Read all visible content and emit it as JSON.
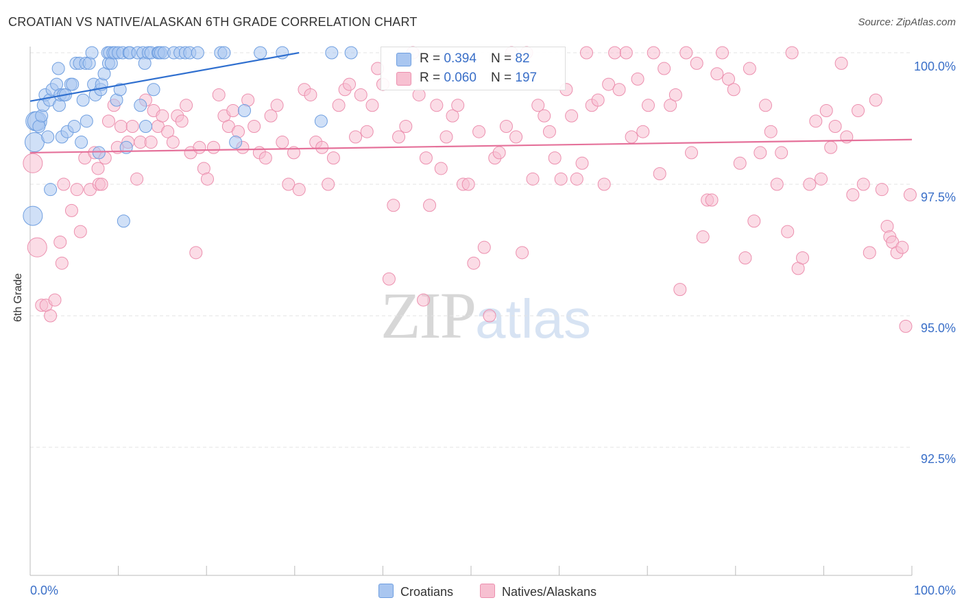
{
  "header": {
    "title": "CROATIAN VS NATIVE/ALASKAN 6TH GRADE CORRELATION CHART",
    "source": "Source: ZipAtlas.com"
  },
  "watermark": {
    "part1": "ZIP",
    "part2": "atlas"
  },
  "legend": {
    "series1": {
      "r_label": "R = ",
      "r_value": "0.394",
      "n_label": "N = ",
      "n_value": "82"
    },
    "series2": {
      "r_label": "R = ",
      "r_value": "0.060",
      "n_label": "N = ",
      "n_value": "197"
    }
  },
  "bottom_legend": {
    "s1": "Croatians",
    "s2": "Natives/Alaskans"
  },
  "colors": {
    "blue_fill": "#a9c6f0",
    "blue_stroke": "#6e9ee0",
    "blue_line": "#2f6fcf",
    "pink_fill": "#f7c0d1",
    "pink_stroke": "#ec8fae",
    "pink_line": "#e5719a",
    "tick_text": "#3a6fc8",
    "grid": "#e3e3e3"
  },
  "chart_data": {
    "type": "scatter",
    "title": "CROATIAN VS NATIVE/ALASKAN 6TH GRADE CORRELATION CHART",
    "xlabel": "",
    "ylabel": "6th Grade",
    "xlim": [
      0,
      100
    ],
    "ylim": [
      90.0,
      100.0
    ],
    "x_tick_labels": [
      "0.0%",
      "100.0%"
    ],
    "y_ticks": [
      100.0,
      97.5,
      95.0,
      92.5
    ],
    "y_tick_labels": [
      "100.0%",
      "97.5%",
      "95.0%",
      "92.5%"
    ],
    "grid": true,
    "legend_position": "top-center",
    "series": [
      {
        "name": "Croatians",
        "color": "#6e9ee0",
        "R": 0.394,
        "N": 82,
        "trend": {
          "x": [
            0,
            30.5
          ],
          "y": [
            99.08,
            100.0
          ]
        },
        "points": [
          [
            0.3,
            96.9
          ],
          [
            0.5,
            98.3
          ],
          [
            0.6,
            98.7
          ],
          [
            0.8,
            98.7
          ],
          [
            1.0,
            98.6
          ],
          [
            1.3,
            98.8
          ],
          [
            1.5,
            99.0
          ],
          [
            1.7,
            99.2
          ],
          [
            2.0,
            98.4
          ],
          [
            2.2,
            99.1
          ],
          [
            2.3,
            97.4
          ],
          [
            2.5,
            99.3
          ],
          [
            3.0,
            99.4
          ],
          [
            3.2,
            99.7
          ],
          [
            3.3,
            99.0
          ],
          [
            3.4,
            99.2
          ],
          [
            3.6,
            98.4
          ],
          [
            3.8,
            99.2
          ],
          [
            4.0,
            99.2
          ],
          [
            4.2,
            98.5
          ],
          [
            4.6,
            99.4
          ],
          [
            4.8,
            99.4
          ],
          [
            5.0,
            98.6
          ],
          [
            5.2,
            99.8
          ],
          [
            5.6,
            99.8
          ],
          [
            5.8,
            98.3
          ],
          [
            6.0,
            99.1
          ],
          [
            6.3,
            99.8
          ],
          [
            6.4,
            98.7
          ],
          [
            6.7,
            99.8
          ],
          [
            7.0,
            100.0
          ],
          [
            7.2,
            99.4
          ],
          [
            7.4,
            99.2
          ],
          [
            7.8,
            98.1
          ],
          [
            8.0,
            99.3
          ],
          [
            8.1,
            99.4
          ],
          [
            8.4,
            99.6
          ],
          [
            8.8,
            100.0
          ],
          [
            8.9,
            99.8
          ],
          [
            9.0,
            100.0
          ],
          [
            9.2,
            99.8
          ],
          [
            9.4,
            100.0
          ],
          [
            9.6,
            100.0
          ],
          [
            9.8,
            99.1
          ],
          [
            10.0,
            100.0
          ],
          [
            10.2,
            99.3
          ],
          [
            10.5,
            100.0
          ],
          [
            10.6,
            96.8
          ],
          [
            10.9,
            98.2
          ],
          [
            11.2,
            100.0
          ],
          [
            11.3,
            100.0
          ],
          [
            12.2,
            100.0
          ],
          [
            12.5,
            99.0
          ],
          [
            12.8,
            100.0
          ],
          [
            13.0,
            99.8
          ],
          [
            13.1,
            98.6
          ],
          [
            13.4,
            100.0
          ],
          [
            13.7,
            100.0
          ],
          [
            14.0,
            99.3
          ],
          [
            14.5,
            100.0
          ],
          [
            14.6,
            100.0
          ],
          [
            14.8,
            100.0
          ],
          [
            15.2,
            100.0
          ],
          [
            16.3,
            100.0
          ],
          [
            17.0,
            100.0
          ],
          [
            17.6,
            100.0
          ],
          [
            18.1,
            100.0
          ],
          [
            19.0,
            100.0
          ],
          [
            21.6,
            100.0
          ],
          [
            22.0,
            100.0
          ],
          [
            23.3,
            98.3
          ],
          [
            24.3,
            98.9
          ],
          [
            26.1,
            100.0
          ],
          [
            28.6,
            100.0
          ],
          [
            33.0,
            98.7
          ],
          [
            34.2,
            100.0
          ],
          [
            36.4,
            100.0
          ]
        ]
      },
      {
        "name": "Natives/Alaskans",
        "color": "#ec8fae",
        "R": 0.06,
        "N": 197,
        "trend": {
          "x": [
            0,
            100
          ],
          "y": [
            98.1,
            98.35
          ]
        },
        "points": [
          [
            0.3,
            97.9
          ],
          [
            0.8,
            96.3
          ],
          [
            1.3,
            95.2
          ],
          [
            1.8,
            95.2
          ],
          [
            2.3,
            95.0
          ],
          [
            2.8,
            95.3
          ],
          [
            3.4,
            96.4
          ],
          [
            3.8,
            97.5
          ],
          [
            3.6,
            96.0
          ],
          [
            4.7,
            97.0
          ],
          [
            5.3,
            97.4
          ],
          [
            5.7,
            96.6
          ],
          [
            6.2,
            98.0
          ],
          [
            6.8,
            97.4
          ],
          [
            7.3,
            98.1
          ],
          [
            7.7,
            97.8
          ],
          [
            7.8,
            97.5
          ],
          [
            8.1,
            97.5
          ],
          [
            8.5,
            98.0
          ],
          [
            8.9,
            98.7
          ],
          [
            9.5,
            99.0
          ],
          [
            9.9,
            98.2
          ],
          [
            10.3,
            98.6
          ],
          [
            11.1,
            98.3
          ],
          [
            11.6,
            98.6
          ],
          [
            12.1,
            97.6
          ],
          [
            12.5,
            98.3
          ],
          [
            13.1,
            99.1
          ],
          [
            13.7,
            98.3
          ],
          [
            14.0,
            98.9
          ],
          [
            14.5,
            98.6
          ],
          [
            15.0,
            98.8
          ],
          [
            15.6,
            98.5
          ],
          [
            16.2,
            98.3
          ],
          [
            16.7,
            98.8
          ],
          [
            17.2,
            98.7
          ],
          [
            17.7,
            99.0
          ],
          [
            18.2,
            98.1
          ],
          [
            18.8,
            96.2
          ],
          [
            19.2,
            98.2
          ],
          [
            19.7,
            97.8
          ],
          [
            20.1,
            97.6
          ],
          [
            20.8,
            98.2
          ],
          [
            21.4,
            99.2
          ],
          [
            22.0,
            98.8
          ],
          [
            22.5,
            98.6
          ],
          [
            23.0,
            98.9
          ],
          [
            23.6,
            98.5
          ],
          [
            24.1,
            98.2
          ],
          [
            24.7,
            99.1
          ],
          [
            25.4,
            98.6
          ],
          [
            26.0,
            98.1
          ],
          [
            26.7,
            98.0
          ],
          [
            27.3,
            98.8
          ],
          [
            28.0,
            99.0
          ],
          [
            28.6,
            98.3
          ],
          [
            29.3,
            97.5
          ],
          [
            29.9,
            98.1
          ],
          [
            30.5,
            97.4
          ],
          [
            31.1,
            99.3
          ],
          [
            31.8,
            99.2
          ],
          [
            32.4,
            98.3
          ],
          [
            33.1,
            98.2
          ],
          [
            33.8,
            97.5
          ],
          [
            34.4,
            98.0
          ],
          [
            35.0,
            99.0
          ],
          [
            35.7,
            99.3
          ],
          [
            36.2,
            99.4
          ],
          [
            36.9,
            98.4
          ],
          [
            37.5,
            99.2
          ],
          [
            38.2,
            98.5
          ],
          [
            38.8,
            99.0
          ],
          [
            39.4,
            99.7
          ],
          [
            40.0,
            99.4
          ],
          [
            40.7,
            95.7
          ],
          [
            41.2,
            97.1
          ],
          [
            41.8,
            98.4
          ],
          [
            42.6,
            98.6
          ],
          [
            43.4,
            100.0
          ],
          [
            44.1,
            99.2
          ],
          [
            44.6,
            95.3
          ],
          [
            44.9,
            98.0
          ],
          [
            45.3,
            97.1
          ],
          [
            46.1,
            99.0
          ],
          [
            46.6,
            97.8
          ],
          [
            47.2,
            98.4
          ],
          [
            47.9,
            98.8
          ],
          [
            48.5,
            99.0
          ],
          [
            49.1,
            97.5
          ],
          [
            49.7,
            97.5
          ],
          [
            50.3,
            96.0
          ],
          [
            50.9,
            98.5
          ],
          [
            51.5,
            96.3
          ],
          [
            52.1,
            95.0
          ],
          [
            52.7,
            98.0
          ],
          [
            53.2,
            98.1
          ],
          [
            54.0,
            98.6
          ],
          [
            54.6,
            100.0
          ],
          [
            55.1,
            98.4
          ],
          [
            55.8,
            96.2
          ],
          [
            56.3,
            100.0
          ],
          [
            57.0,
            97.6
          ],
          [
            57.6,
            99.0
          ],
          [
            58.3,
            98.8
          ],
          [
            58.9,
            98.5
          ],
          [
            59.5,
            98.0
          ],
          [
            60.2,
            97.6
          ],
          [
            60.8,
            99.3
          ],
          [
            61.4,
            98.8
          ],
          [
            62.0,
            97.6
          ],
          [
            62.6,
            97.9
          ],
          [
            63.1,
            100.0
          ],
          [
            63.7,
            99.0
          ],
          [
            64.4,
            99.1
          ],
          [
            65.1,
            97.5
          ],
          [
            65.6,
            99.4
          ],
          [
            66.3,
            100.0
          ],
          [
            66.8,
            99.3
          ],
          [
            67.6,
            100.0
          ],
          [
            68.2,
            98.4
          ],
          [
            68.9,
            99.5
          ],
          [
            69.5,
            98.5
          ],
          [
            70.1,
            99.0
          ],
          [
            70.7,
            100.0
          ],
          [
            71.4,
            97.7
          ],
          [
            71.9,
            99.7
          ],
          [
            72.6,
            99.0
          ],
          [
            73.2,
            99.2
          ],
          [
            73.7,
            95.5
          ],
          [
            74.4,
            100.0
          ],
          [
            75.0,
            98.1
          ],
          [
            75.6,
            99.8
          ],
          [
            76.3,
            96.5
          ],
          [
            76.8,
            97.2
          ],
          [
            77.3,
            97.2
          ],
          [
            77.9,
            99.6
          ],
          [
            78.5,
            100.0
          ],
          [
            79.2,
            99.5
          ],
          [
            79.8,
            99.3
          ],
          [
            80.5,
            97.9
          ],
          [
            81.1,
            96.1
          ],
          [
            81.6,
            99.7
          ],
          [
            82.1,
            96.8
          ],
          [
            82.8,
            98.1
          ],
          [
            83.4,
            99.0
          ],
          [
            84.0,
            98.5
          ],
          [
            84.7,
            97.5
          ],
          [
            85.2,
            98.1
          ],
          [
            85.9,
            96.6
          ],
          [
            86.4,
            100.0
          ],
          [
            87.1,
            95.9
          ],
          [
            87.6,
            96.1
          ],
          [
            88.4,
            97.5
          ],
          [
            89.1,
            98.7
          ],
          [
            89.7,
            97.6
          ],
          [
            90.3,
            98.9
          ],
          [
            90.8,
            98.2
          ],
          [
            91.3,
            98.6
          ],
          [
            92.0,
            99.8
          ],
          [
            92.6,
            98.4
          ],
          [
            93.3,
            97.3
          ],
          [
            93.9,
            98.9
          ],
          [
            94.5,
            97.5
          ],
          [
            95.2,
            96.2
          ],
          [
            95.9,
            99.1
          ],
          [
            96.6,
            97.4
          ],
          [
            97.2,
            96.7
          ],
          [
            97.5,
            96.5
          ],
          [
            97.8,
            96.4
          ],
          [
            98.3,
            96.2
          ],
          [
            98.9,
            96.3
          ],
          [
            99.3,
            94.8
          ],
          [
            99.8,
            97.3
          ]
        ]
      }
    ]
  }
}
